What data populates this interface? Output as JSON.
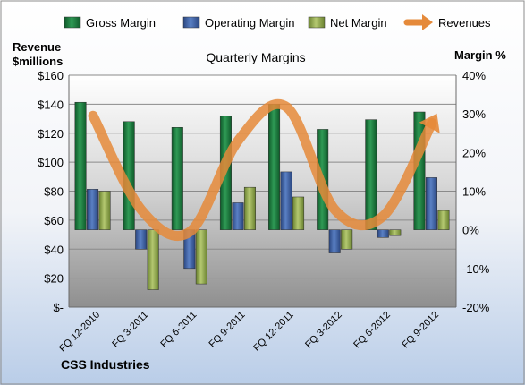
{
  "chart_data": {
    "type": "bar",
    "title": "Quarterly Margins",
    "company": "CSS Industries",
    "left_axis": {
      "label_line1": "Revenue",
      "label_line2": "$millions",
      "range": [
        0,
        160
      ],
      "ticks": [
        0,
        20,
        40,
        60,
        80,
        100,
        120,
        140,
        160
      ],
      "tick_labels": [
        "$-",
        "$20",
        "$40",
        "$60",
        "$80",
        "$100",
        "$120",
        "$140",
        "$160"
      ]
    },
    "right_axis": {
      "label": "Margin  %",
      "range": [
        -20,
        40
      ],
      "ticks": [
        -20,
        -10,
        0,
        10,
        20,
        30,
        40
      ],
      "tick_labels": [
        "-20%",
        "-10%",
        "0%",
        "10%",
        "20%",
        "30%",
        "40%"
      ]
    },
    "categories": [
      "FQ 12-2010",
      "FQ 3-2011",
      "FQ 6-2011",
      "FQ 9-2011",
      "FQ 12-2011",
      "FQ 3-2012",
      "FQ 6-2012",
      "FQ 9-2012"
    ],
    "series": [
      {
        "name": "Gross Margin",
        "axis": "right",
        "color": "#1e7a3e",
        "values": [
          33.0,
          28.0,
          26.5,
          29.5,
          32.5,
          26.0,
          28.5,
          30.5
        ]
      },
      {
        "name": "Operating Margin",
        "axis": "right",
        "color": "#3a5fa0",
        "values": [
          10.5,
          -5.0,
          -10.0,
          7.0,
          15.0,
          -6.0,
          -2.0,
          13.5
        ]
      },
      {
        "name": "Net Margin",
        "axis": "right",
        "color": "#8aa040",
        "values": [
          10.0,
          -15.5,
          -14.0,
          11.0,
          8.5,
          -5.0,
          -1.5,
          5.0
        ]
      },
      {
        "name": "Revenues",
        "axis": "left",
        "color": "#e58a3a",
        "type": "line",
        "values": [
          132,
          67,
          52,
          115,
          138,
          67,
          63,
          127
        ]
      }
    ],
    "legend_position": "top",
    "grid": true
  }
}
